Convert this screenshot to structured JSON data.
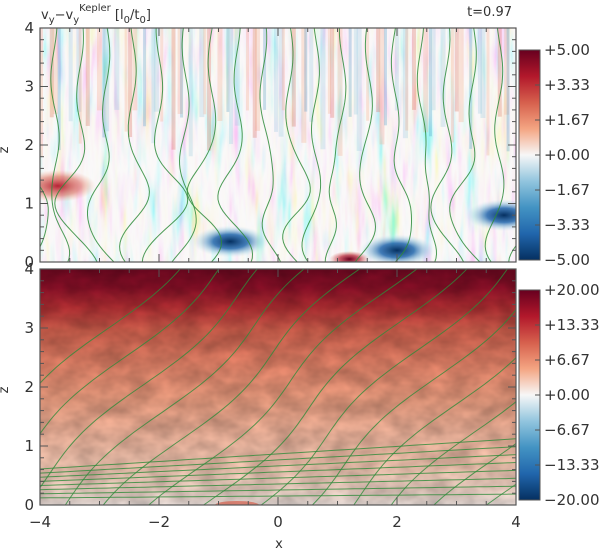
{
  "chart_data": [
    {
      "type": "heatmap",
      "title": "v_y - v_y^Kepler [l_0/t_0]",
      "annotation": "t=0.97",
      "xlabel": "",
      "ylabel": "z",
      "xlim": [
        -4,
        4
      ],
      "ylim": [
        0,
        4
      ],
      "x_ticks": [
        "",
        "",
        "",
        "",
        ""
      ],
      "y_ticks": [
        "0",
        "1",
        "2",
        "3",
        "4"
      ],
      "colorbar": {
        "range": [
          -5.0,
          5.0
        ],
        "ticks": [
          "+5.00",
          "+3.33",
          "+1.67",
          "+0.00",
          "-1.67",
          "-3.33",
          "-5.00"
        ],
        "colors": [
          "#67001f",
          "#b2182b",
          "#d6604d",
          "#f4a582",
          "#f7f7f7",
          "#92c5de",
          "#4393c3",
          "#2166ac",
          "#053061"
        ]
      },
      "contour_color": "#2e8b3a",
      "features": [
        {
          "x": -3.7,
          "z": 1.3,
          "value": 3.0
        },
        {
          "x": 1.2,
          "z": 0.05,
          "value": 5.0
        },
        {
          "x": 2.0,
          "z": 0.2,
          "value": -4.5
        },
        {
          "x": -0.8,
          "z": 0.35,
          "value": -4.5
        },
        {
          "x": 3.8,
          "z": 0.8,
          "value": -4.0
        }
      ]
    },
    {
      "type": "heatmap",
      "title": "",
      "xlabel": "x",
      "ylabel": "z",
      "xlim": [
        -4,
        4
      ],
      "ylim": [
        0,
        4
      ],
      "x_ticks": [
        "-4",
        "-2",
        "0",
        "2",
        "4"
      ],
      "y_ticks": [
        "0",
        "1",
        "2",
        "3",
        "4"
      ],
      "colorbar": {
        "range": [
          -20.0,
          20.0
        ],
        "ticks": [
          "+20.00",
          "+13.33",
          "+6.67",
          "+0.00",
          "-6.67",
          "-13.33",
          "-20.00"
        ],
        "colors": [
          "#67001f",
          "#b2182b",
          "#d6604d",
          "#f4a582",
          "#f7f7f7",
          "#92c5de",
          "#4393c3",
          "#2166ac",
          "#053061"
        ]
      },
      "contour_color": "#2e8b3a",
      "vertical_profile": [
        {
          "z": 4.0,
          "value": 19
        },
        {
          "z": 3.6,
          "value": 18
        },
        {
          "z": 3.3,
          "value": 15
        },
        {
          "z": 3.0,
          "value": 12
        },
        {
          "z": 2.5,
          "value": 9
        },
        {
          "z": 2.0,
          "value": 7
        },
        {
          "z": 1.5,
          "value": 5
        },
        {
          "z": 1.0,
          "value": 4
        },
        {
          "z": 0.5,
          "value": 3
        },
        {
          "z": 0.0,
          "value": 1
        }
      ]
    }
  ]
}
